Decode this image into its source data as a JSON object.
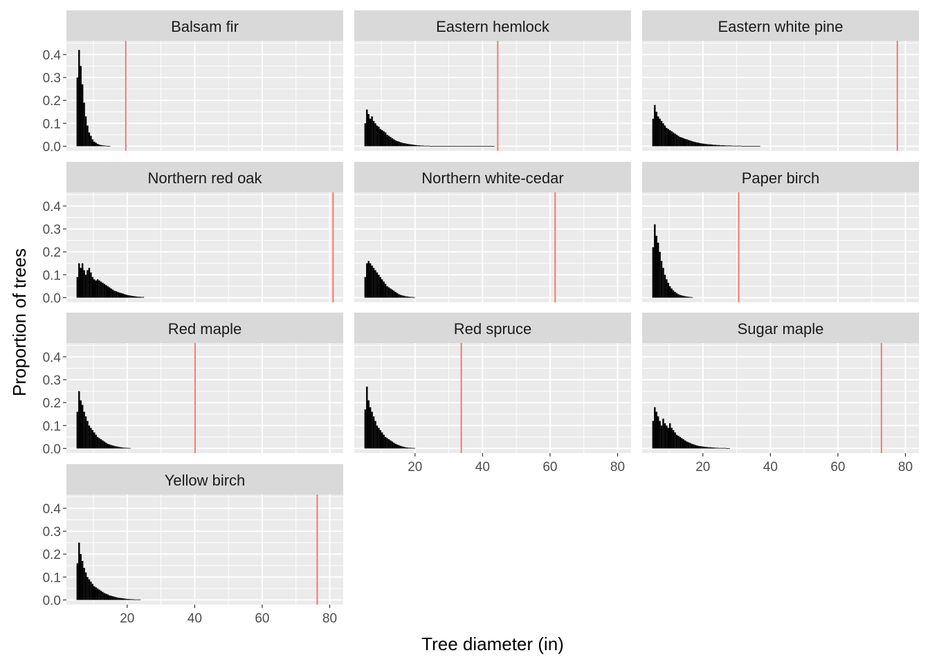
{
  "chart_data": {
    "type": "bar",
    "chart_kind": "faceted histogram",
    "xlabel": "Tree diameter (in)",
    "ylabel": "Proportion of trees",
    "xlim": [
      2,
      84
    ],
    "ylim": [
      -0.02,
      0.46
    ],
    "x_ticks": [
      20,
      40,
      60,
      80
    ],
    "y_ticks": [
      0.0,
      0.1,
      0.2,
      0.3,
      0.4
    ],
    "y_tick_labels": [
      "0.0",
      "0.1",
      "0.2",
      "0.3",
      "0.4"
    ],
    "grid": true,
    "bin_start": 5,
    "bin_width": 0.5,
    "bar_color": "#000000",
    "panel_background": "#ebebeb",
    "strip_background": "#d9d9d9",
    "vline_color": "#f8766d",
    "facets": [
      {
        "name": "Balsam fir",
        "vline": 19.6,
        "values": [
          0.3,
          0.42,
          0.35,
          0.27,
          0.19,
          0.13,
          0.09,
          0.06,
          0.045,
          0.03,
          0.02,
          0.015,
          0.01,
          0.007,
          0.005,
          0.004,
          0.003,
          0.002,
          0.0015,
          0.001
        ]
      },
      {
        "name": "Eastern hemlock",
        "vline": 44.5,
        "values": [
          0.1,
          0.16,
          0.14,
          0.12,
          0.13,
          0.11,
          0.1,
          0.09,
          0.085,
          0.075,
          0.07,
          0.065,
          0.06,
          0.05,
          0.045,
          0.04,
          0.035,
          0.03,
          0.025,
          0.022,
          0.02,
          0.017,
          0.015,
          0.013,
          0.012,
          0.01,
          0.009,
          0.008,
          0.007,
          0.006,
          0.005,
          0.004,
          0.004,
          0.003,
          0.003,
          0.002,
          0.002,
          0.002,
          0.002,
          0.001,
          0.001,
          0.001,
          0.001,
          0.001,
          0.001,
          0.001,
          0.001,
          0.001,
          0.001,
          0.001,
          0.001,
          0.001,
          0.001,
          0.0005,
          0.0005,
          0.0005,
          0.0005,
          0.0005,
          0.0005,
          0.0005,
          0.0005,
          0.0005,
          0.0005,
          0.0005,
          0.0005,
          0.0005,
          0.0005,
          0.0005,
          0.0005,
          0.0005,
          0.0005,
          0.0005,
          0.0005,
          0.0005,
          0.0005,
          0.0005,
          0.0005
        ]
      },
      {
        "name": "Eastern white pine",
        "vline": 77.6,
        "values": [
          0.12,
          0.18,
          0.15,
          0.13,
          0.12,
          0.11,
          0.1,
          0.09,
          0.08,
          0.075,
          0.07,
          0.065,
          0.06,
          0.055,
          0.05,
          0.045,
          0.04,
          0.038,
          0.035,
          0.032,
          0.03,
          0.027,
          0.025,
          0.022,
          0.02,
          0.018,
          0.016,
          0.015,
          0.013,
          0.012,
          0.011,
          0.01,
          0.009,
          0.008,
          0.008,
          0.007,
          0.006,
          0.006,
          0.005,
          0.005,
          0.004,
          0.004,
          0.004,
          0.003,
          0.003,
          0.003,
          0.003,
          0.002,
          0.002,
          0.002,
          0.002,
          0.002,
          0.002,
          0.001,
          0.001,
          0.001,
          0.001,
          0.001,
          0.001,
          0.001,
          0.001,
          0.001,
          0.001,
          0.001
        ]
      },
      {
        "name": "Northern red oak",
        "vline": 81.0,
        "values": [
          0.09,
          0.15,
          0.13,
          0.15,
          0.12,
          0.1,
          0.12,
          0.13,
          0.11,
          0.09,
          0.08,
          0.075,
          0.08,
          0.075,
          0.07,
          0.065,
          0.06,
          0.055,
          0.05,
          0.045,
          0.04,
          0.035,
          0.03,
          0.028,
          0.025,
          0.022,
          0.02,
          0.018,
          0.015,
          0.013,
          0.011,
          0.01,
          0.008,
          0.007,
          0.006,
          0.005,
          0.004,
          0.004,
          0.003,
          0.003
        ]
      },
      {
        "name": "Northern white-cedar",
        "vline": 61.5,
        "values": [
          0.09,
          0.15,
          0.16,
          0.15,
          0.14,
          0.13,
          0.12,
          0.11,
          0.1,
          0.09,
          0.08,
          0.07,
          0.06,
          0.05,
          0.045,
          0.04,
          0.035,
          0.03,
          0.025,
          0.02,
          0.015,
          0.012,
          0.01,
          0.008,
          0.006,
          0.005,
          0.004,
          0.003,
          0.003,
          0.002
        ]
      },
      {
        "name": "Paper birch",
        "vline": 30.6,
        "values": [
          0.22,
          0.32,
          0.27,
          0.24,
          0.2,
          0.16,
          0.13,
          0.1,
          0.08,
          0.065,
          0.05,
          0.04,
          0.032,
          0.025,
          0.02,
          0.015,
          0.012,
          0.01,
          0.008,
          0.006,
          0.005,
          0.004,
          0.003,
          0.002
        ]
      },
      {
        "name": "Red maple",
        "vline": 40.1,
        "values": [
          0.16,
          0.25,
          0.21,
          0.19,
          0.16,
          0.14,
          0.12,
          0.1,
          0.09,
          0.08,
          0.07,
          0.06,
          0.05,
          0.045,
          0.04,
          0.035,
          0.03,
          0.025,
          0.02,
          0.018,
          0.015,
          0.013,
          0.011,
          0.009,
          0.008,
          0.006,
          0.005,
          0.004,
          0.003,
          0.003,
          0.002,
          0.002
        ]
      },
      {
        "name": "Red spruce",
        "vline": 33.7,
        "values": [
          0.17,
          0.27,
          0.21,
          0.18,
          0.16,
          0.14,
          0.12,
          0.1,
          0.09,
          0.08,
          0.07,
          0.06,
          0.05,
          0.045,
          0.04,
          0.035,
          0.03,
          0.025,
          0.02,
          0.017,
          0.014,
          0.011,
          0.009,
          0.007,
          0.005,
          0.004,
          0.003,
          0.003,
          0.002,
          0.002
        ]
      },
      {
        "name": "Sugar maple",
        "vline": 72.9,
        "values": [
          0.12,
          0.18,
          0.16,
          0.14,
          0.12,
          0.1,
          0.13,
          0.11,
          0.1,
          0.09,
          0.11,
          0.09,
          0.08,
          0.07,
          0.06,
          0.055,
          0.05,
          0.045,
          0.04,
          0.035,
          0.03,
          0.027,
          0.024,
          0.02,
          0.018,
          0.015,
          0.013,
          0.011,
          0.01,
          0.009,
          0.008,
          0.007,
          0.006,
          0.005,
          0.005,
          0.004,
          0.004,
          0.003,
          0.003,
          0.002,
          0.002,
          0.002,
          0.002,
          0.002,
          0.001,
          0.001
        ]
      },
      {
        "name": "Yellow birch",
        "vline": 76.3,
        "values": [
          0.16,
          0.25,
          0.2,
          0.17,
          0.14,
          0.12,
          0.1,
          0.09,
          0.08,
          0.07,
          0.06,
          0.055,
          0.05,
          0.045,
          0.04,
          0.035,
          0.03,
          0.027,
          0.024,
          0.02,
          0.018,
          0.016,
          0.014,
          0.012,
          0.01,
          0.009,
          0.008,
          0.007,
          0.006,
          0.005,
          0.004,
          0.004,
          0.003,
          0.003,
          0.002,
          0.002,
          0.002,
          0.002
        ]
      }
    ]
  }
}
